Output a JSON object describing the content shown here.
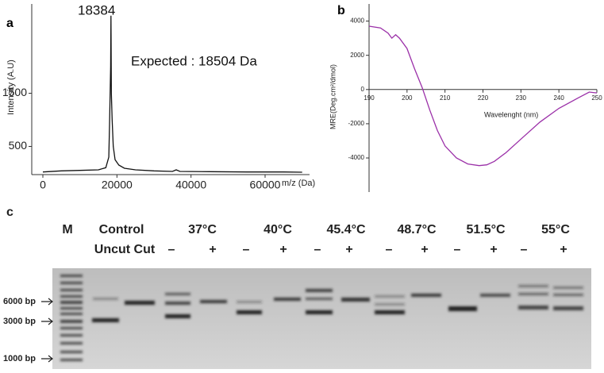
{
  "chart_data": [
    {
      "type": "line",
      "label": "a",
      "ylabel": "Intensity (A.U)",
      "xlabel": "m/z  (Da)",
      "annotations": [
        "18384",
        "Expected : 18504 Da"
      ],
      "color": "#111111",
      "x": [
        0,
        5000,
        10000,
        15000,
        17000,
        17800,
        18000,
        18200,
        18300,
        18384,
        18500,
        18700,
        19000,
        19500,
        20500,
        22000,
        25000,
        30000,
        35000,
        36000,
        37000,
        45000,
        55000,
        65000,
        70000
      ],
      "values": [
        20,
        40,
        50,
        60,
        100,
        300,
        900,
        1600,
        2000,
        2960,
        1500,
        1000,
        500,
        250,
        150,
        90,
        60,
        40,
        30,
        60,
        30,
        25,
        20,
        20,
        15
      ],
      "xlim": [
        -3000,
        72000
      ],
      "ylim": [
        0,
        3180
      ],
      "xticks": [
        0,
        20000,
        40000,
        60000
      ],
      "yticks": [
        500,
        1500
      ]
    },
    {
      "type": "line",
      "label": "b",
      "ylabel": "MRE(Deg.cm²/dmol)",
      "xlabel": "Wavelenght (nm)",
      "color": "#9b30a8",
      "x": [
        190,
        193,
        195,
        196,
        197,
        198,
        200,
        202,
        204,
        206,
        208,
        210,
        213,
        216,
        219,
        221,
        223,
        226,
        230,
        235,
        240,
        245,
        248,
        250
      ],
      "values": [
        3700,
        3600,
        3300,
        3000,
        3200,
        3000,
        2400,
        1200,
        100,
        -1200,
        -2400,
        -3300,
        -4000,
        -4350,
        -4450,
        -4400,
        -4200,
        -3700,
        -2900,
        -1900,
        -1100,
        -500,
        -150,
        -200
      ],
      "xlim": [
        190,
        250
      ],
      "ylim": [
        -5900,
        5000
      ],
      "xticks": [
        190,
        200,
        210,
        220,
        230,
        240,
        250
      ],
      "yticks": [
        -4000,
        -2000,
        0,
        2000,
        4000
      ]
    }
  ],
  "gel": {
    "label": "c",
    "marker": "M",
    "control": "Control",
    "control_lanes": "Uncut Cut",
    "temperatures": [
      "37°C",
      "40°C",
      "45.4°C",
      "48.7°C",
      "51.5°C",
      "55°C"
    ],
    "signs": [
      "–",
      "+",
      "–",
      "+",
      "–",
      "+",
      "–",
      "+",
      "–",
      "+",
      "–",
      "+"
    ],
    "size_labels": [
      "6000 bp",
      "3000 bp",
      "1000 bp"
    ]
  }
}
